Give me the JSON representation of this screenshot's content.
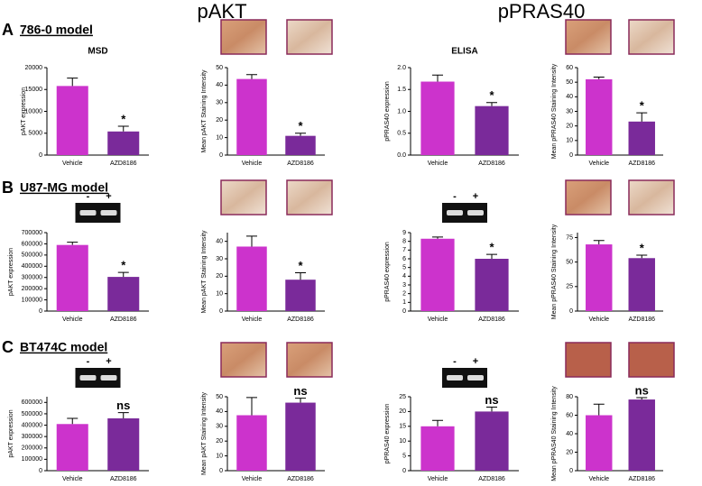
{
  "figure": {
    "column_titles": [
      "pAKT",
      "pPRAS40"
    ],
    "panels": [
      {
        "letter": "A",
        "model": "786-0 model"
      },
      {
        "letter": "B",
        "model": "U87-MG model"
      },
      {
        "letter": "C",
        "model": "BT474C model"
      }
    ]
  },
  "chart_data": [
    {
      "type": "bar",
      "title": "MSD",
      "ylabel": "pAKT expression",
      "categories": [
        "Vehicle",
        "AZD8186"
      ],
      "values": [
        15800,
        5400
      ],
      "errors": [
        1800,
        1200
      ],
      "annotation": "*",
      "colors": [
        "#cc33cc",
        "#7a2a9a"
      ],
      "ylim": [
        0,
        20000
      ],
      "yticks": [
        0,
        5000,
        10000,
        15000,
        20000
      ]
    },
    {
      "type": "bar",
      "ylabel": "Mean pAKT Staining Intensity",
      "categories": [
        "Vehicle",
        "AZD8186"
      ],
      "values": [
        43.5,
        11
      ],
      "errors": [
        2.5,
        1.5
      ],
      "annotation": "*",
      "colors": [
        "#cc33cc",
        "#7a2a9a"
      ],
      "ylim": [
        0,
        50
      ],
      "yticks": [
        0,
        10,
        20,
        30,
        40,
        50
      ]
    },
    {
      "type": "bar",
      "title": "ELISA",
      "ylabel": "pPRAS40 expression",
      "categories": [
        "Vehicle",
        "AZD8186"
      ],
      "values": [
        1.68,
        1.12
      ],
      "errors": [
        0.15,
        0.08
      ],
      "annotation": "*",
      "colors": [
        "#cc33cc",
        "#7a2a9a"
      ],
      "ylim": [
        0,
        2
      ],
      "yticks": [
        {
          "value": 0,
          "label": "0.0"
        },
        {
          "value": 0.5,
          "label": "0.5"
        },
        {
          "value": 1,
          "label": "1.0"
        },
        {
          "value": 1.5,
          "label": "1.5"
        },
        {
          "value": 2,
          "label": "2.0"
        }
      ]
    },
    {
      "type": "bar",
      "ylabel": "Mean pPRAS40 Staining Intensity",
      "categories": [
        "Vehicle",
        "AZD8186"
      ],
      "values": [
        52,
        23
      ],
      "errors": [
        1.5,
        6
      ],
      "annotation": "*",
      "colors": [
        "#cc33cc",
        "#7a2a9a"
      ],
      "ylim": [
        0,
        60
      ],
      "yticks": [
        0,
        10,
        20,
        30,
        40,
        50,
        60
      ]
    },
    {
      "type": "bar",
      "ylabel": "pAKT expression",
      "gel_labels": [
        "-",
        "+"
      ],
      "categories": [
        "Vehicle",
        "AZD8186"
      ],
      "values": [
        590000,
        305000
      ],
      "errors": [
        25000,
        40000
      ],
      "annotation": "*",
      "colors": [
        "#cc33cc",
        "#7a2a9a"
      ],
      "ylim": [
        0,
        700000
      ],
      "yticks": [
        0,
        100000,
        200000,
        300000,
        400000,
        500000,
        600000,
        700000
      ]
    },
    {
      "type": "bar",
      "ylabel": "Mean pAKT Staining Intensity",
      "categories": [
        "Vehicle",
        "AZD8186"
      ],
      "values": [
        37,
        18
      ],
      "errors": [
        6,
        4
      ],
      "annotation": "*",
      "colors": [
        "#cc33cc",
        "#7a2a9a"
      ],
      "ylim": [
        0,
        45
      ],
      "yticks": [
        0,
        10,
        20,
        30,
        40
      ]
    },
    {
      "type": "bar",
      "ylabel": "pPRAS40 expression",
      "gel_labels": [
        "-",
        "+"
      ],
      "categories": [
        "Vehicle",
        "AZD8186"
      ],
      "values": [
        8.3,
        6.0
      ],
      "errors": [
        0.2,
        0.5
      ],
      "annotation": "*",
      "colors": [
        "#cc33cc",
        "#7a2a9a"
      ],
      "ylim": [
        0,
        9
      ],
      "yticks": [
        0,
        1,
        2,
        3,
        4,
        5,
        6,
        7,
        8,
        9
      ]
    },
    {
      "type": "bar",
      "ylabel": "Mean pPRAS40 Staining Intensity",
      "categories": [
        "Vehicle",
        "AZD8186"
      ],
      "values": [
        68,
        54
      ],
      "errors": [
        4,
        3
      ],
      "annotation": "*",
      "colors": [
        "#cc33cc",
        "#7a2a9a"
      ],
      "ylim": [
        0,
        80
      ],
      "yticks": [
        0,
        25,
        50,
        75
      ]
    },
    {
      "type": "bar",
      "ylabel": "pAKT expression",
      "gel_labels": [
        "-",
        "+"
      ],
      "categories": [
        "Vehicle",
        "AZD8186"
      ],
      "values": [
        410000,
        460000
      ],
      "errors": [
        50000,
        50000
      ],
      "annotation": "ns",
      "colors": [
        "#cc33cc",
        "#7a2a9a"
      ],
      "ylim": [
        0,
        650000
      ],
      "yticks": [
        0,
        100000,
        200000,
        300000,
        400000,
        500000,
        600000
      ]
    },
    {
      "type": "bar",
      "ylabel": "Mean pAKT Staining Intensity",
      "categories": [
        "Vehicle",
        "AZD8186"
      ],
      "values": [
        37.5,
        46
      ],
      "errors": [
        12,
        3
      ],
      "annotation": "ns",
      "colors": [
        "#cc33cc",
        "#7a2a9a"
      ],
      "ylim": [
        0,
        50
      ],
      "yticks": [
        0,
        10,
        20,
        30,
        40,
        50
      ]
    },
    {
      "type": "bar",
      "ylabel": "pPRAS40 expression",
      "gel_labels": [
        "-",
        "+"
      ],
      "categories": [
        "Vehicle",
        "AZD8186"
      ],
      "values": [
        15,
        20
      ],
      "errors": [
        2,
        1.5
      ],
      "annotation": "ns",
      "colors": [
        "#cc33cc",
        "#7a2a9a"
      ],
      "ylim": [
        0,
        25
      ],
      "yticks": [
        0,
        5,
        10,
        15,
        20,
        25
      ]
    },
    {
      "type": "bar",
      "ylabel": "Mean pPRAS40 Staining Intensity",
      "categories": [
        "Vehicle",
        "AZD8186"
      ],
      "values": [
        60,
        77
      ],
      "errors": [
        12,
        2
      ],
      "annotation": "ns",
      "colors": [
        "#cc33cc",
        "#7a2a9a"
      ],
      "ylim": [
        0,
        80
      ],
      "yticks": [
        0,
        20,
        40,
        60,
        80
      ]
    }
  ]
}
